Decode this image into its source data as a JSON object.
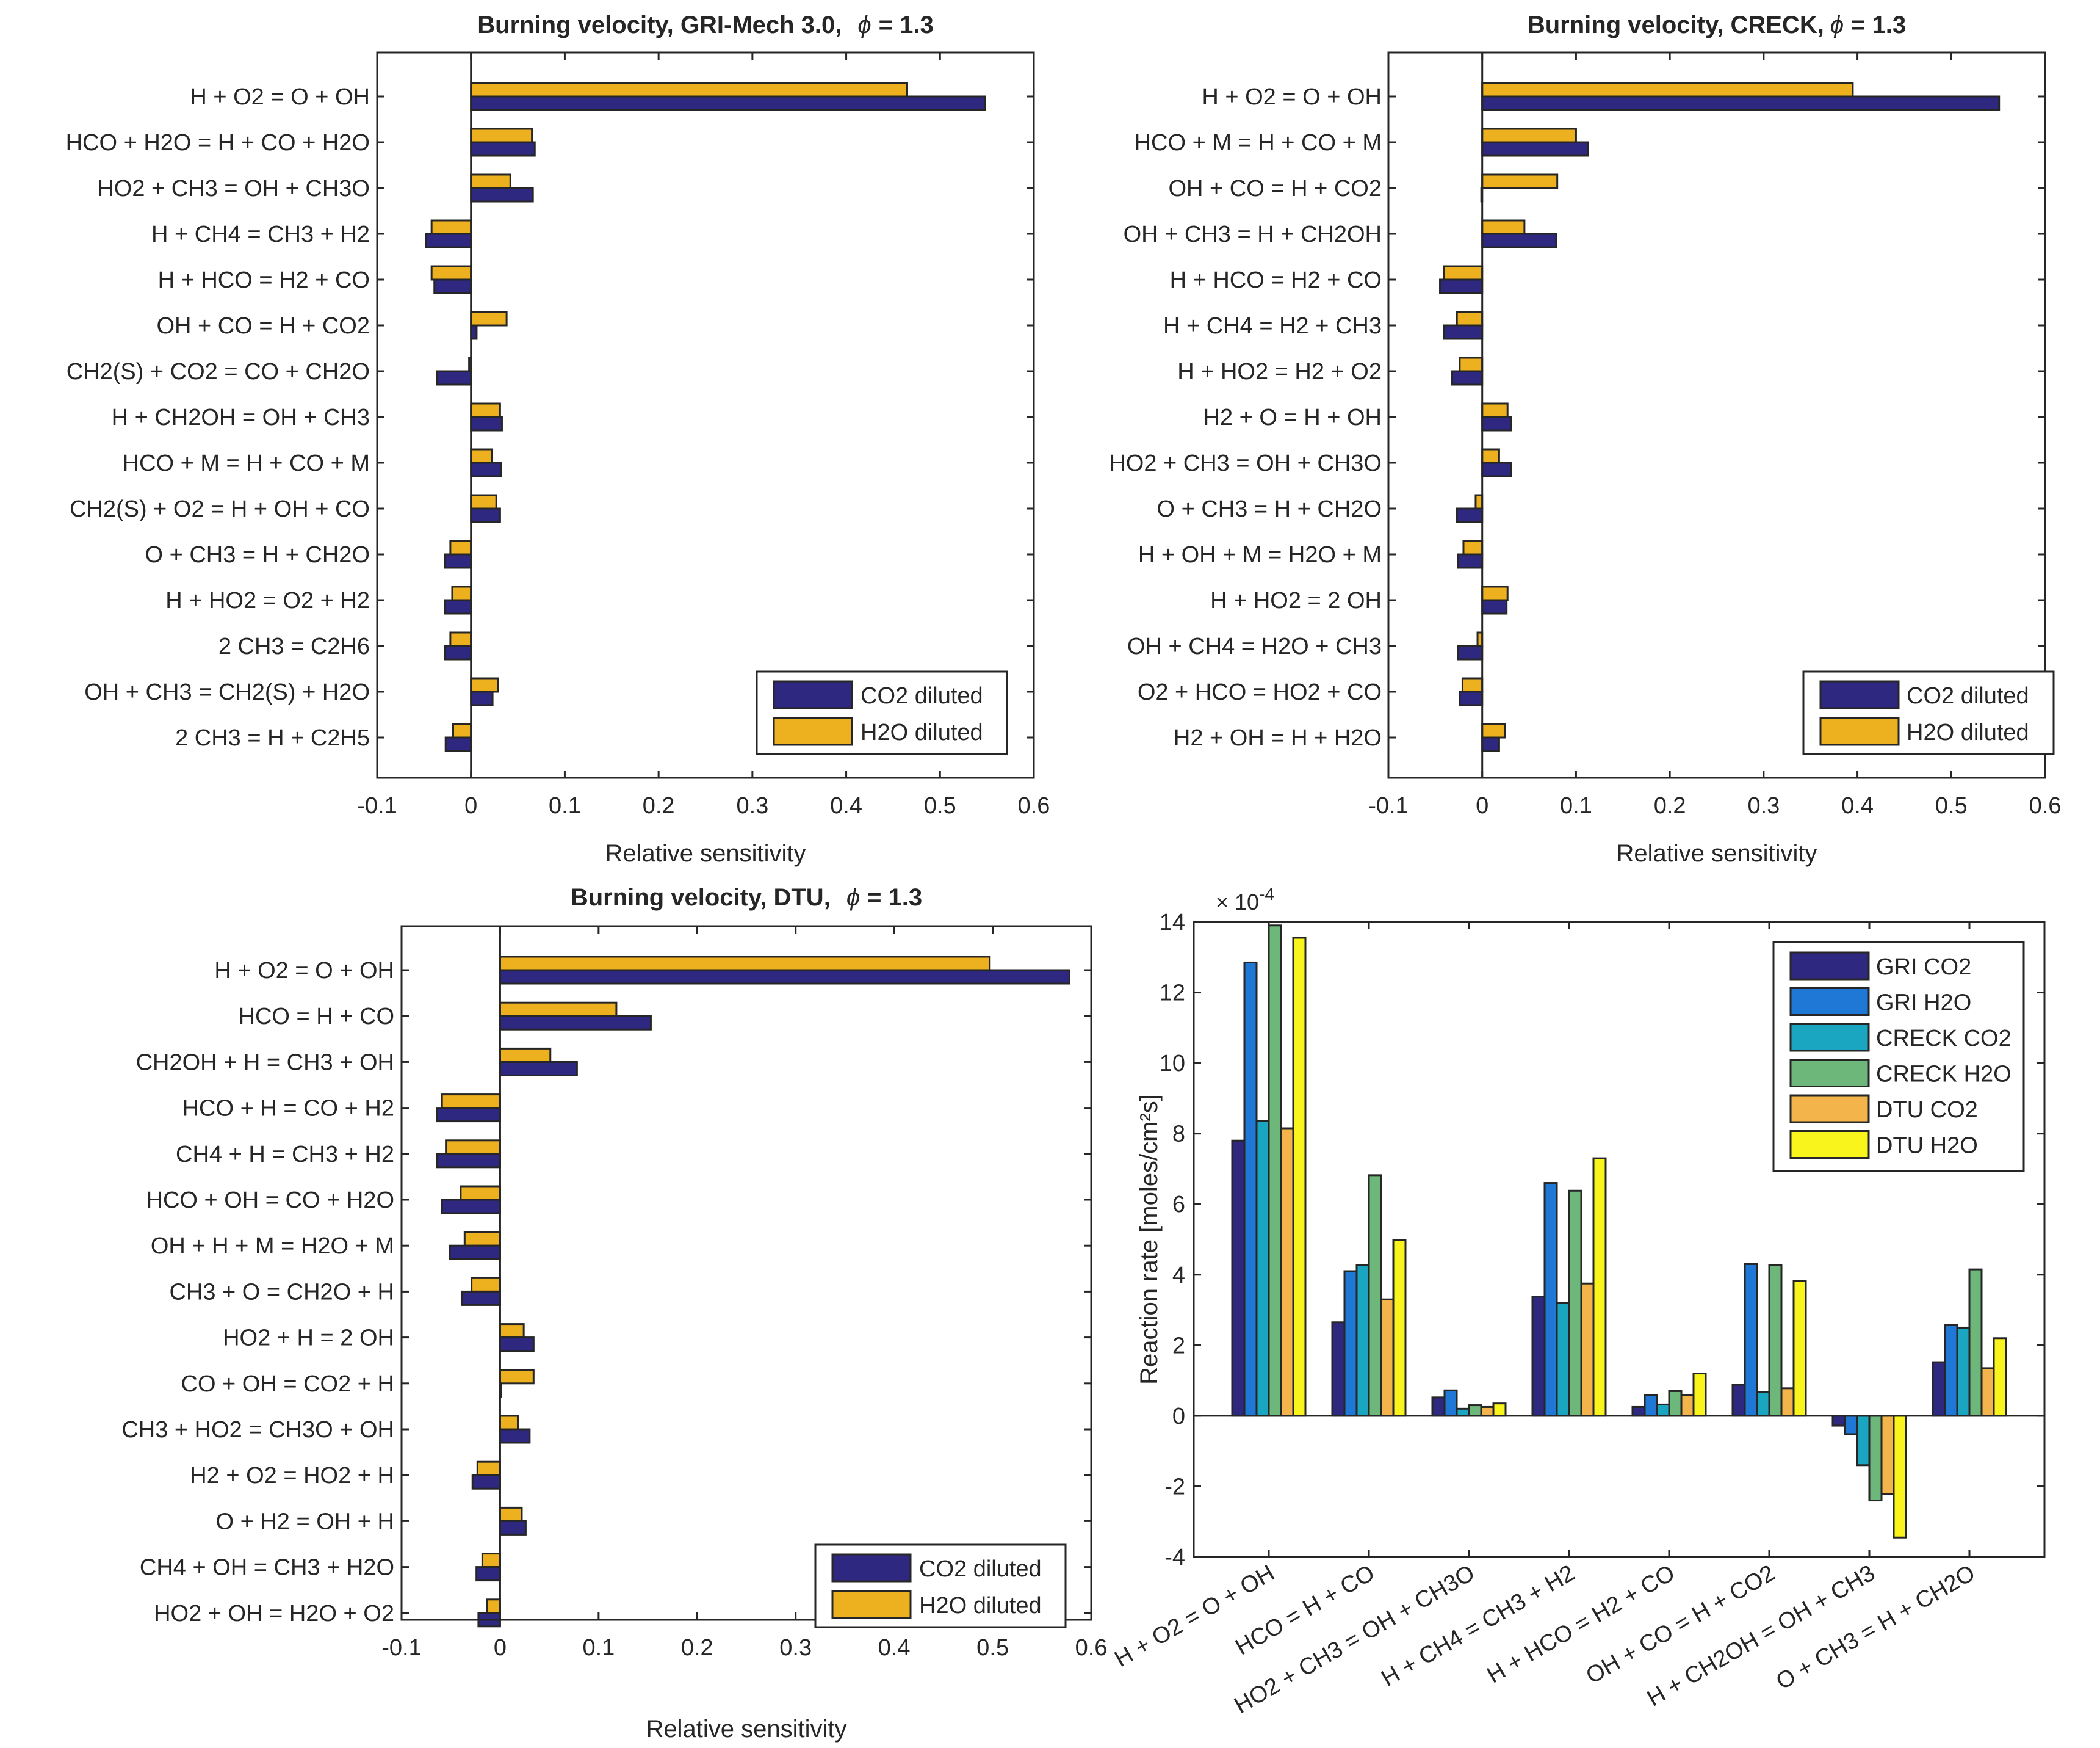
{
  "colors": {
    "co2": "#2e2881",
    "h2o": "#edb120",
    "gri_co2": "#2e2881",
    "gri_h2o": "#1f77d6",
    "creck_co2": "#1aa5c1",
    "creck_h2o": "#6db77b",
    "dtu_co2": "#f3b54b",
    "dtu_h2o": "#f9f51c",
    "axis": "#262626"
  },
  "chart_data": [
    {
      "id": "gri",
      "type": "bar",
      "orientation": "horizontal",
      "title_main": "Burning velocity, GRI-Mech 3.0,",
      "title_phi": "ϕ",
      "title_tail": "= 1.3",
      "xlabel": "Relative sensitivity",
      "xlim": [
        -0.1,
        0.6
      ],
      "xticks": [
        -0.1,
        0,
        0.1,
        0.2,
        0.3,
        0.4,
        0.5,
        0.6
      ],
      "xtick_labels": [
        "-0.1",
        "0",
        "0.1",
        "0.2",
        "0.3",
        "0.4",
        "0.5",
        "0.6"
      ],
      "legend_position": "bottom-right",
      "categories": [
        "H + O2 = O + OH",
        "HCO + H2O = H + CO + H2O",
        "HO2 + CH3 = OH + CH3O",
        "H + CH4 = CH3 + H2",
        "H + HCO = H2 + CO",
        "OH + CO = H + CO2",
        "CH2(S) + CO2 = CO + CH2O",
        "H + CH2OH = OH + CH3",
        "HCO + M = H + CO + M",
        "CH2(S) + O2 = H + OH + CO",
        "O + CH3 = H + CH2O",
        "H + HO2 = O2 + H2",
        "2 CH3 = C2H6",
        "OH + CH3 = CH2(S) + H2O",
        "2 CH3 = H + C2H5"
      ],
      "series": [
        {
          "name": "CO2 diluted",
          "values": [
            0.548,
            0.068,
            0.066,
            -0.048,
            -0.039,
            0.006,
            -0.036,
            0.033,
            0.032,
            0.031,
            -0.028,
            -0.028,
            -0.028,
            0.023,
            -0.027
          ]
        },
        {
          "name": "H2O diluted",
          "values": [
            0.465,
            0.065,
            0.042,
            -0.042,
            -0.042,
            0.038,
            -0.002,
            0.031,
            0.022,
            0.027,
            -0.022,
            -0.02,
            -0.022,
            0.029,
            -0.019
          ]
        }
      ]
    },
    {
      "id": "creck",
      "type": "bar",
      "orientation": "horizontal",
      "title_main": "Burning velocity, CRECK,",
      "title_phi": "ϕ",
      "title_tail": "= 1.3",
      "xlabel": "Relative sensitivity",
      "xlim": [
        -0.1,
        0.6
      ],
      "xticks": [
        -0.1,
        0,
        0.1,
        0.2,
        0.3,
        0.4,
        0.5,
        0.6
      ],
      "xtick_labels": [
        "-0.1",
        "0",
        "0.1",
        "0.2",
        "0.3",
        "0.4",
        "0.5",
        "0.6"
      ],
      "legend_position": "bottom-right",
      "categories": [
        "H + O2 = O + OH",
        "HCO + M = H + CO + M",
        "OH + CO = H + CO2",
        "OH + CH3 = H + CH2OH",
        "H + HCO = H2 + CO",
        "H + CH4 = H2 + CH3",
        "H + HO2 = H2 + O2",
        "H2 + O = H + OH",
        "HO2 + CH3 = OH + CH3O",
        "O + CH3 = H + CH2O",
        "H + OH + M = H2O + M",
        "H + HO2 = 2 OH",
        "OH + CH4 = H2O + CH3",
        "O2 + HCO = HO2 + CO",
        "H2 + OH = H + H2O"
      ],
      "series": [
        {
          "name": "CO2 diluted",
          "values": [
            0.551,
            0.113,
            -0.001,
            0.079,
            -0.045,
            -0.041,
            -0.032,
            0.031,
            0.031,
            -0.027,
            -0.026,
            0.026,
            -0.026,
            -0.024,
            0.018
          ]
        },
        {
          "name": "H2O diluted",
          "values": [
            0.395,
            0.1,
            0.08,
            0.045,
            -0.041,
            -0.027,
            -0.024,
            0.027,
            0.018,
            -0.007,
            -0.02,
            0.027,
            -0.005,
            -0.021,
            0.024
          ]
        }
      ]
    },
    {
      "id": "dtu",
      "type": "bar",
      "orientation": "horizontal",
      "title_main": "Burning velocity, DTU,",
      "title_phi": "ϕ",
      "title_tail": "= 1.3",
      "xlabel": "Relative sensitivity",
      "xlim": [
        -0.1,
        0.6
      ],
      "xticks": [
        -0.1,
        0,
        0.1,
        0.2,
        0.3,
        0.4,
        0.5,
        0.6
      ],
      "xtick_labels": [
        "-0.1",
        "0",
        "0.1",
        "0.2",
        "0.3",
        "0.4",
        "0.5",
        "0.6"
      ],
      "legend_position": "bottom-right",
      "categories": [
        "H + O2 = O + OH",
        "HCO = H + CO",
        "CH2OH + H = CH3 + OH",
        "HCO + H = CO + H2",
        "CH4 + H = CH3 + H2",
        "HCO + OH = CO + H2O",
        "OH + H + M = H2O + M",
        "CH3 + O = CH2O + H",
        "HO2 + H = 2 OH",
        "CO + OH = CO2 + H",
        "CH3 + HO2 = CH3O + OH",
        "H2 + O2 = HO2 + H",
        "O + H2 = OH + H",
        "CH4 + OH = CH3 + H2O",
        "HO2 + OH = H2O + O2"
      ],
      "series": [
        {
          "name": "CO2 diluted",
          "values": [
            0.578,
            0.153,
            0.078,
            -0.064,
            -0.064,
            -0.059,
            -0.051,
            -0.039,
            0.034,
            0.001,
            0.03,
            -0.028,
            0.026,
            -0.024,
            -0.022
          ]
        },
        {
          "name": "H2O diluted",
          "values": [
            0.497,
            0.118,
            0.051,
            -0.059,
            -0.055,
            -0.04,
            -0.036,
            -0.029,
            0.024,
            0.034,
            0.018,
            -0.023,
            0.022,
            -0.018,
            -0.013
          ]
        }
      ]
    },
    {
      "id": "rates",
      "type": "bar",
      "orientation": "vertical",
      "ylabel": "Reaction rate [moles/cm²s]",
      "exponent_base": "× 10",
      "exponent_power": "-4",
      "ylim": [
        -4,
        14
      ],
      "yticks": [
        -4,
        -2,
        0,
        2,
        4,
        6,
        8,
        10,
        12,
        14
      ],
      "ytick_labels": [
        "-4",
        "-2",
        "0",
        "2",
        "4",
        "6",
        "8",
        "10",
        "12",
        "14"
      ],
      "legend_position": "top-right",
      "categories": [
        "H + O2 = O + OH",
        "HCO = H + CO",
        "HO2 + CH3 = OH + CH3O",
        "H + CH4 = CH3 + H2",
        "H + HCO = H2 + CO",
        "OH + CO = H + CO2",
        "H + CH2OH = OH + CH3",
        "O + CH3 = H + CH2O"
      ],
      "series": [
        {
          "name": "GRI CO2",
          "values": [
            7.8,
            2.65,
            0.52,
            3.38,
            0.25,
            0.88,
            -0.28,
            1.52
          ]
        },
        {
          "name": "GRI H2O",
          "values": [
            12.85,
            4.1,
            0.72,
            6.6,
            0.58,
            4.3,
            -0.52,
            2.58
          ]
        },
        {
          "name": "CRECK CO2",
          "values": [
            8.35,
            4.28,
            0.2,
            3.2,
            0.32,
            0.68,
            -1.4,
            2.5
          ]
        },
        {
          "name": "CRECK H2O",
          "values": [
            13.9,
            6.82,
            0.3,
            6.38,
            0.7,
            4.28,
            -2.4,
            4.15
          ]
        },
        {
          "name": "DTU CO2",
          "values": [
            8.15,
            3.3,
            0.25,
            3.75,
            0.58,
            0.78,
            -2.22,
            1.35
          ]
        },
        {
          "name": "DTU H2O",
          "values": [
            13.55,
            4.98,
            0.35,
            7.3,
            1.2,
            3.82,
            -3.45,
            2.2
          ]
        }
      ]
    }
  ]
}
